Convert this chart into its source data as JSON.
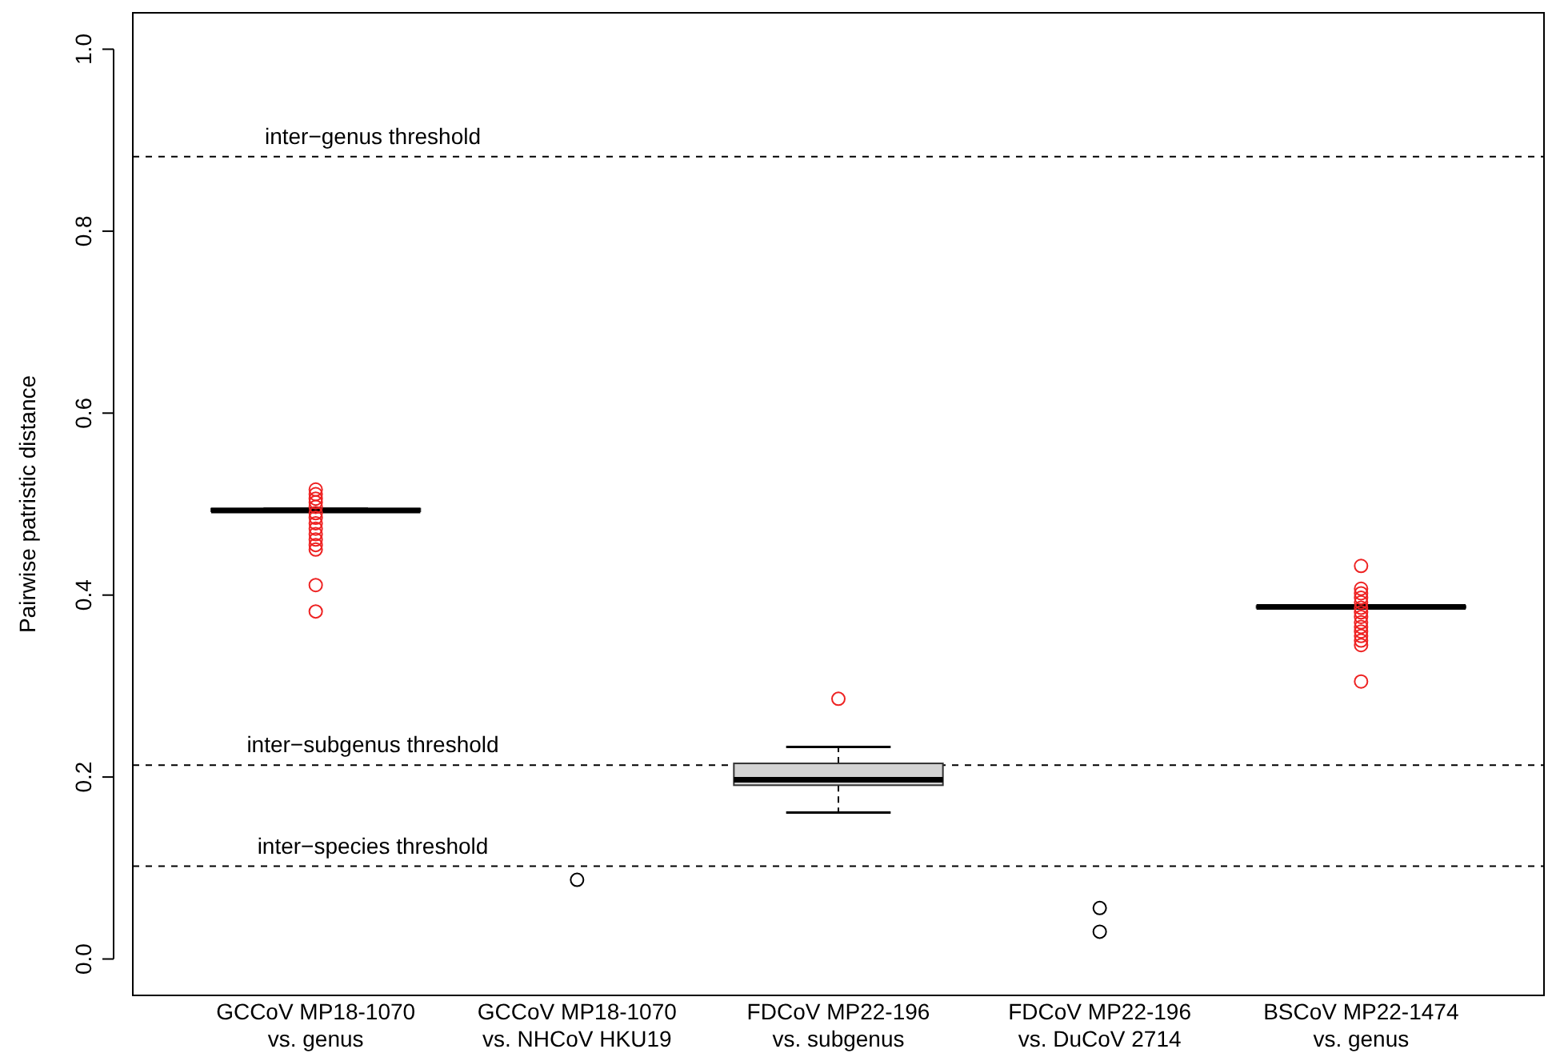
{
  "chart_data": {
    "type": "box",
    "ylabel": "Pairwise patristic distance",
    "categories": [
      "GCCoV MP18-1070\nvs. genus",
      "GCCoV MP18-1070\nvs. NHCoV HKU19",
      "FDCoV MP22-196\nvs. subgenus",
      "FDCoV MP22-196\nvs. DuCoV 2714",
      "BSCoV MP22-1474\nvs. genus"
    ],
    "series": [
      {
        "type": "box",
        "color": "#d3d3d3",
        "boxes": [
          {
            "low": 0.492,
            "q1": 0.492,
            "median": 0.493,
            "q3": 0.495,
            "high": 0.495,
            "outliers": [
              0.516,
              0.511,
              0.506,
              0.502,
              0.497,
              0.49,
              0.485,
              0.479,
              0.473,
              0.467,
              0.461,
              0.455,
              0.45,
              0.411,
              0.382
            ]
          },
          null,
          {
            "low": 0.161,
            "q1": 0.191,
            "median": 0.197,
            "q3": 0.215,
            "high": 0.233,
            "outliers": [
              0.286
            ]
          },
          null,
          {
            "low": 0.386,
            "q1": 0.386,
            "median": 0.387,
            "q3": 0.388,
            "high": 0.388,
            "outliers": [
              0.432,
              0.407,
              0.402,
              0.397,
              0.392,
              0.386,
              0.381,
              0.376,
              0.37,
              0.365,
              0.36,
              0.355,
              0.35,
              0.345,
              0.305
            ]
          }
        ]
      },
      {
        "type": "scatter",
        "color": "#000000",
        "x": [
          "GCCoV MP18-1070\nvs. NHCoV HKU19",
          "FDCoV MP22-196\nvs. DuCoV 2714",
          "FDCoV MP22-196\nvs. DuCoV 2714"
        ],
        "values": [
          0.087,
          0.056,
          0.03
        ]
      }
    ],
    "ylim": [
      -0.04,
      1.04
    ],
    "yticks": [
      {
        "value": 0,
        "label": "0.0"
      },
      0.2,
      0.4,
      0.6,
      0.8,
      {
        "value": 1,
        "label": "1.0"
      }
    ],
    "ref_lines": [
      {
        "axis": "y",
        "value": 0.882,
        "label": "inter−genus threshold",
        "line_style": "dashed"
      },
      {
        "axis": "y",
        "value": 0.213,
        "label": "inter−subgenus threshold",
        "line_style": "dashed"
      },
      {
        "axis": "y",
        "value": 0.102,
        "label": "inter−species threshold",
        "line_style": "dashed"
      }
    ],
    "marker": "circle",
    "grid": false
  }
}
